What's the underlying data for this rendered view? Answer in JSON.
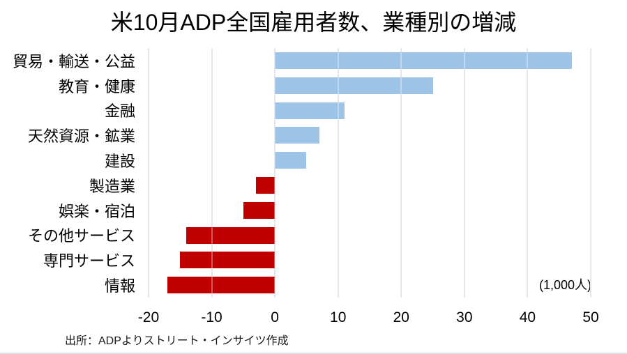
{
  "title": "米10月ADP全国雇用者数、業種別の増減",
  "unit_note": "(1,000人)",
  "source": "出所：ADPよりストリート・インサイツ作成",
  "chart_data": {
    "type": "bar",
    "orientation": "horizontal",
    "title": "米10月ADP全国雇用者数、業種別の増減",
    "categories": [
      "貿易・輸送・公益",
      "教育・健康",
      "金融",
      "天然資源・鉱業",
      "建設",
      "製造業",
      "娯楽・宿泊",
      "その他サービス",
      "専門サービス",
      "情報"
    ],
    "values": [
      47,
      25,
      11,
      7,
      5,
      -3,
      -5,
      -14,
      -15,
      -17
    ],
    "xlabel": "",
    "ylabel": "",
    "unit_label": "(1,000人)",
    "xlim": [
      -20,
      50
    ],
    "xticks": [
      -20,
      -10,
      0,
      10,
      20,
      30,
      40,
      50
    ],
    "grid": true,
    "legend": false,
    "positive_color": "#9DC3E6",
    "negative_color": "#C00000",
    "gridline_color": "#D9D9D9",
    "background_color": "#FFFFFF"
  }
}
